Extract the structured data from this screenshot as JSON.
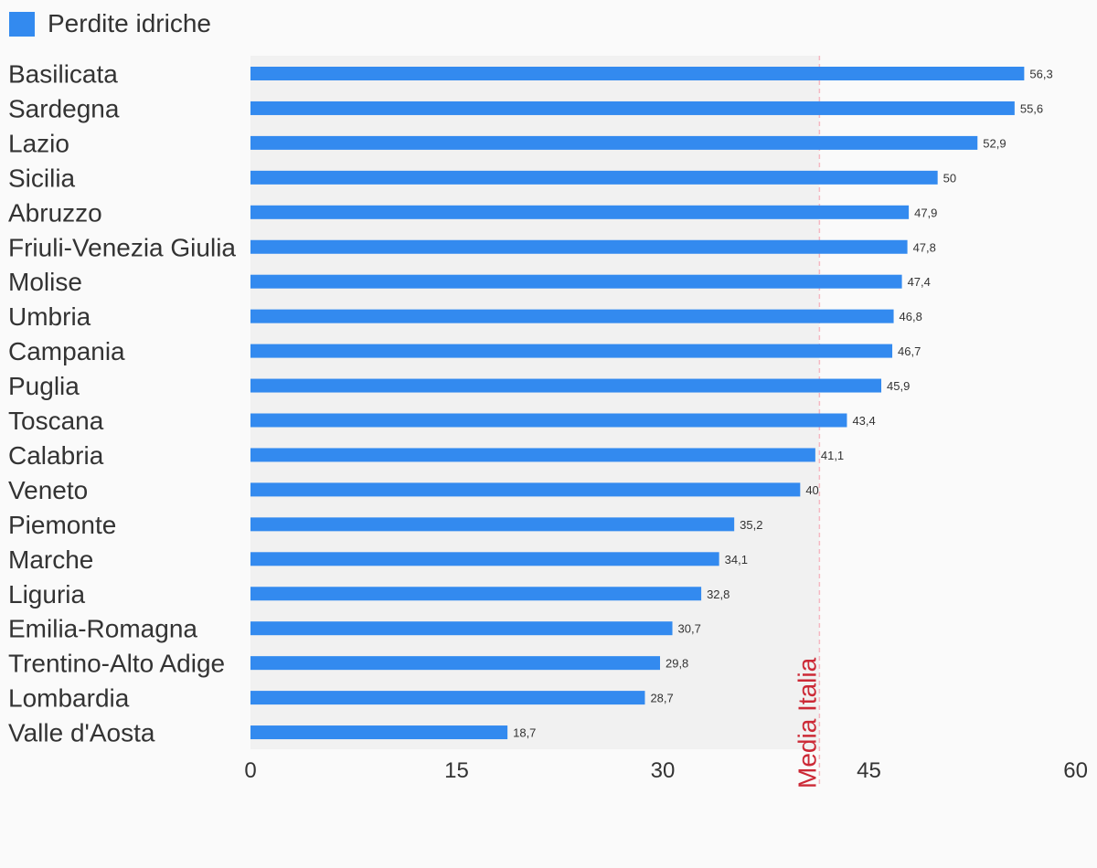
{
  "chart_data": {
    "type": "bar",
    "orientation": "horizontal",
    "series": [
      {
        "name": "Perdite idriche",
        "color": "#338aef",
        "values": [
          56.3,
          55.6,
          52.9,
          50,
          47.9,
          47.8,
          47.4,
          46.8,
          46.7,
          45.9,
          43.4,
          41.1,
          40,
          35.2,
          34.1,
          32.8,
          30.7,
          29.8,
          28.7,
          18.7
        ]
      }
    ],
    "categories": [
      "Basilicata",
      "Sardegna",
      "Lazio",
      "Sicilia",
      "Abruzzo",
      "Friuli-Venezia Giulia",
      "Molise",
      "Umbria",
      "Campania",
      "Puglia",
      "Toscana",
      "Calabria",
      "Veneto",
      "Piemonte",
      "Marche",
      "Liguria",
      "Emilia-Romagna",
      "Trentino-Alto Adige",
      "Lombardia",
      "Valle d'Aosta"
    ],
    "value_labels": [
      "56,3",
      "55,6",
      "52,9",
      "50",
      "47,9",
      "47,8",
      "47,4",
      "46,8",
      "46,7",
      "45,9",
      "43,4",
      "41,1",
      "40",
      "35,2",
      "34,1",
      "32,8",
      "30,7",
      "29,8",
      "28,7",
      "18,7"
    ],
    "xlim": [
      0,
      60
    ],
    "xticks": [
      0,
      15,
      30,
      45,
      60
    ],
    "reference_line": {
      "value": 41.4,
      "label": "Media Italia",
      "color": "#cc2936",
      "line_color": "#f5b8c2"
    },
    "shaded_region_color": "#f1f1f1",
    "legend_position": "top-left",
    "grid": false
  }
}
